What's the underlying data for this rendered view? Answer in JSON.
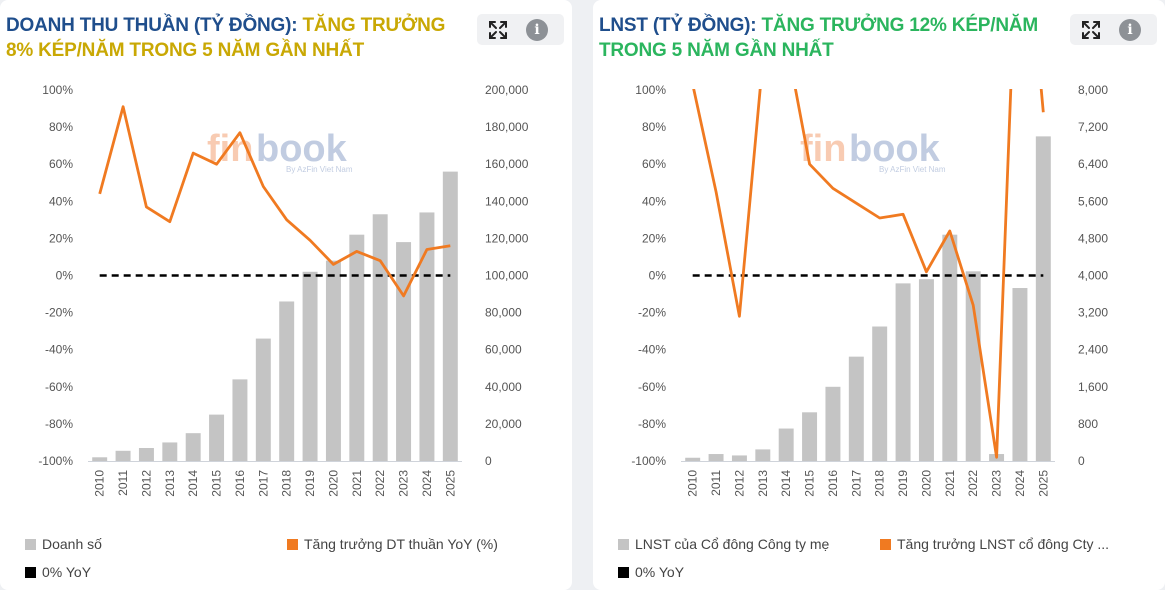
{
  "colors": {
    "bar": "#c4c4c4",
    "line": "#f07a21",
    "zero_line": "#000000",
    "title_blue": "#1f4e8c",
    "title_gold": "#c9a804",
    "title_green": "#2bb55e"
  },
  "watermark": {
    "fin": "fin",
    "book": "book",
    "tagline": "By AzFin Viet Nam"
  },
  "icons": {
    "expand": "expand-icon",
    "info": "info-icon"
  },
  "panels": [
    {
      "title_main": "DOANH THU THUẦN (TỶ ĐỒNG)",
      "title_sep": ":",
      "title_highlight": " TĂNG TRƯỞNG 8% KÉP/NĂM TRONG 5 NĂM GẦN NHẤT",
      "highlight_color": "#c9a804",
      "info_label": "i",
      "legend": {
        "bar": "Doanh số",
        "line": "Tăng trưởng DT thuần YoY (%)",
        "zero": "0% YoY"
      }
    },
    {
      "title_main": "LNST (TỶ ĐỒNG)",
      "title_sep": ":",
      "title_highlight": " TĂNG TRƯỞNG 12% KÉP/NĂM TRONG 5 NĂM GẦN NHẤT",
      "highlight_color": "#2bb55e",
      "info_label": "i",
      "legend": {
        "bar": "LNST của Cổ đông Công ty mẹ",
        "line": "Tăng trưởng LNST cổ đông Cty ...",
        "zero": "0% YoY"
      }
    }
  ],
  "chart_data": [
    {
      "type": "bar+line",
      "categories": [
        "2010",
        "2011",
        "2012",
        "2013",
        "2014",
        "2015",
        "2016",
        "2017",
        "2018",
        "2019",
        "2020",
        "2021",
        "2022",
        "2023",
        "2024",
        "2025"
      ],
      "series": [
        {
          "name": "Doanh số",
          "type": "bar",
          "axis": "right",
          "values": [
            2000,
            5500,
            7000,
            10000,
            15000,
            25000,
            44000,
            66000,
            86000,
            102000,
            108000,
            122000,
            133000,
            118000,
            134000,
            156000
          ]
        },
        {
          "name": "Tăng trưởng DT thuần YoY (%)",
          "type": "line",
          "axis": "left",
          "values": [
            44,
            91,
            37,
            29,
            66,
            60,
            77,
            48,
            30,
            19,
            6,
            13,
            8,
            -11,
            14,
            16
          ]
        },
        {
          "name": "0% YoY",
          "type": "reference",
          "axis": "left",
          "value": 0
        }
      ],
      "yleft": {
        "min": -100,
        "max": 100,
        "ticks": [
          "100%",
          "80%",
          "60%",
          "40%",
          "20%",
          "0%",
          "-20%",
          "-40%",
          "-60%",
          "-80%",
          "-100%"
        ]
      },
      "yright": {
        "min": 0,
        "max": 200000,
        "ticks": [
          "200,000",
          "180,000",
          "160,000",
          "140,000",
          "120,000",
          "100,000",
          "80,000",
          "60,000",
          "40,000",
          "20,000",
          "0"
        ]
      },
      "legend_position": "bottom"
    },
    {
      "type": "bar+line",
      "categories": [
        "2010",
        "2011",
        "2012",
        "2013",
        "2014",
        "2015",
        "2016",
        "2017",
        "2018",
        "2019",
        "2020",
        "2021",
        "2022",
        "2023",
        "2024",
        "2025"
      ],
      "series": [
        {
          "name": "LNST của Cổ đông Công ty mẹ",
          "type": "bar",
          "axis": "right",
          "values": [
            70,
            150,
            120,
            250,
            700,
            1050,
            1600,
            2250,
            2900,
            3830,
            3920,
            4880,
            4090,
            150,
            3730,
            7000
          ]
        },
        {
          "name": "Tăng trưởng LNST cổ đông Cty ...",
          "type": "line",
          "axis": "left",
          "values": [
            103,
            45,
            -22,
            116,
            127,
            60,
            47,
            39,
            31,
            33,
            2,
            24,
            -16,
            -98,
            228,
            88
          ]
        },
        {
          "name": "0% YoY",
          "type": "reference",
          "axis": "left",
          "value": 0
        }
      ],
      "yleft": {
        "min": -100,
        "max": 100,
        "ticks": [
          "100%",
          "80%",
          "60%",
          "40%",
          "20%",
          "0%",
          "-20%",
          "-40%",
          "-60%",
          "-80%",
          "-100%"
        ]
      },
      "yright": {
        "min": 0,
        "max": 8000,
        "ticks": [
          "8,000",
          "7,200",
          "6,400",
          "5,600",
          "4,800",
          "4,000",
          "3,200",
          "2,400",
          "1,600",
          "800",
          "0"
        ]
      },
      "legend_position": "bottom"
    }
  ]
}
